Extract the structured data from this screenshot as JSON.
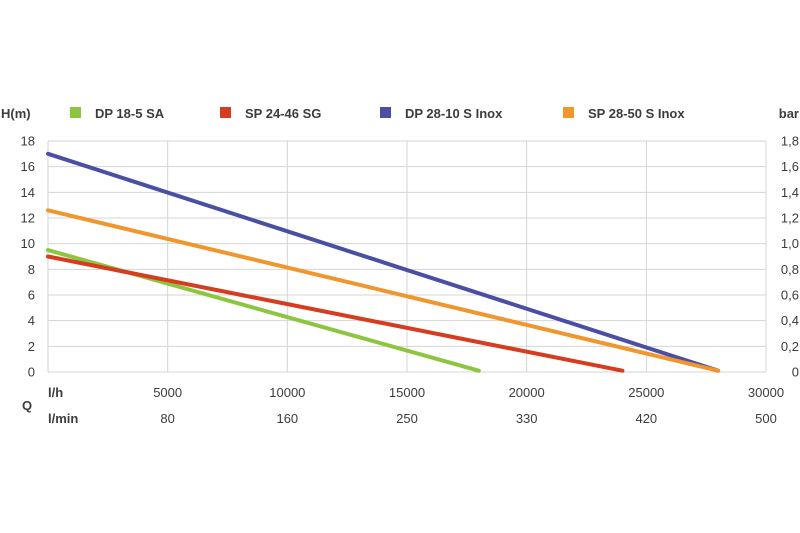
{
  "chart_data": {
    "type": "line",
    "y_left_label": "H(m)",
    "y_right_label": "bar",
    "q_label": "Q",
    "x_unit_lh": "l/h",
    "x_unit_lmin": "l/min",
    "x_range_lh": [
      0,
      30000
    ],
    "y_range_m": [
      0,
      18
    ],
    "y_ticks_left": [
      "0",
      "2",
      "4",
      "6",
      "8",
      "10",
      "12",
      "14",
      "16",
      "18"
    ],
    "y_ticks_right": [
      "0",
      "0,2",
      "0,4",
      "0,6",
      "0,8",
      "1,0",
      "1,2",
      "1,4",
      "1,6",
      "1,8"
    ],
    "x_ticks_lh": [
      "5000",
      "10000",
      "15000",
      "20000",
      "25000",
      "30000"
    ],
    "x_ticks_lmin": [
      "80",
      "160",
      "250",
      "330",
      "420",
      "500"
    ],
    "grid": true,
    "legend_position": "top",
    "series": [
      {
        "name": "DP 18-5 SA",
        "color": "#8cc63f",
        "points": [
          [
            0,
            9.5
          ],
          [
            18000,
            0.1
          ]
        ]
      },
      {
        "name": "SP 24-46 SG",
        "color": "#d63c1f",
        "points": [
          [
            0,
            9.0
          ],
          [
            24000,
            0.1
          ]
        ]
      },
      {
        "name": "DP 28-10 S Inox",
        "color": "#4a4fa3",
        "points": [
          [
            0,
            17.0
          ],
          [
            28000,
            0.1
          ]
        ]
      },
      {
        "name": "SP 28-50 S Inox",
        "color": "#f0962d",
        "points": [
          [
            0,
            12.6
          ],
          [
            28000,
            0.1
          ]
        ]
      }
    ]
  }
}
